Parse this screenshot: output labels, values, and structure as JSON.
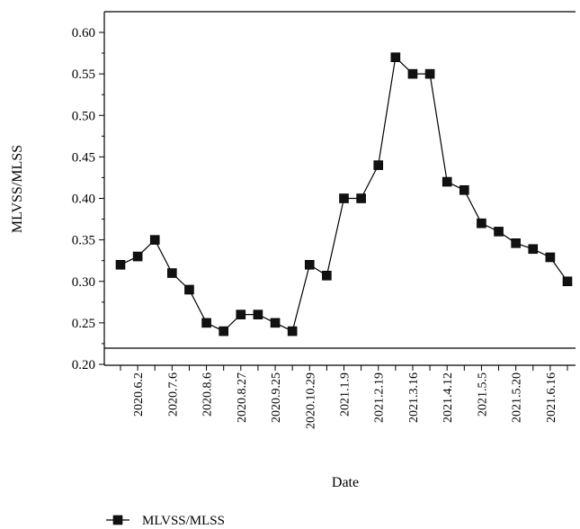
{
  "chart_data": {
    "type": "line",
    "title": "",
    "xlabel": "Date",
    "ylabel": "MLVSS/MLSS",
    "ylim": [
      0.2,
      0.6
    ],
    "yticks": [
      "0.20",
      "0.25",
      "0.30",
      "0.35",
      "0.40",
      "0.45",
      "0.50",
      "0.55",
      "0.60"
    ],
    "ytick_values": [
      0.2,
      0.25,
      0.3,
      0.35,
      0.4,
      0.45,
      0.5,
      0.55,
      0.6
    ],
    "xtick_labels": [
      "2020.6.2",
      "2020.7.6",
      "2020.8.6",
      "2020.8.27",
      "2020.9.25",
      "2020.10.29",
      "2021.1.9",
      "2021.2.19",
      "2021.3.16",
      "2021.4.12",
      "2021.5.5",
      "2021.5.20",
      "2021.6.16"
    ],
    "grid": false,
    "legend_position": "bottom-left",
    "series": [
      {
        "name": "MLVSS/MLSS",
        "values": [
          0.32,
          0.33,
          0.35,
          0.31,
          0.29,
          0.25,
          0.24,
          0.26,
          0.26,
          0.25,
          0.24,
          0.32,
          0.307,
          0.4,
          0.4,
          0.44,
          0.57,
          0.55,
          0.55,
          0.42,
          0.41,
          0.37,
          0.36,
          0.346,
          0.339,
          0.329,
          0.3
        ]
      }
    ]
  }
}
